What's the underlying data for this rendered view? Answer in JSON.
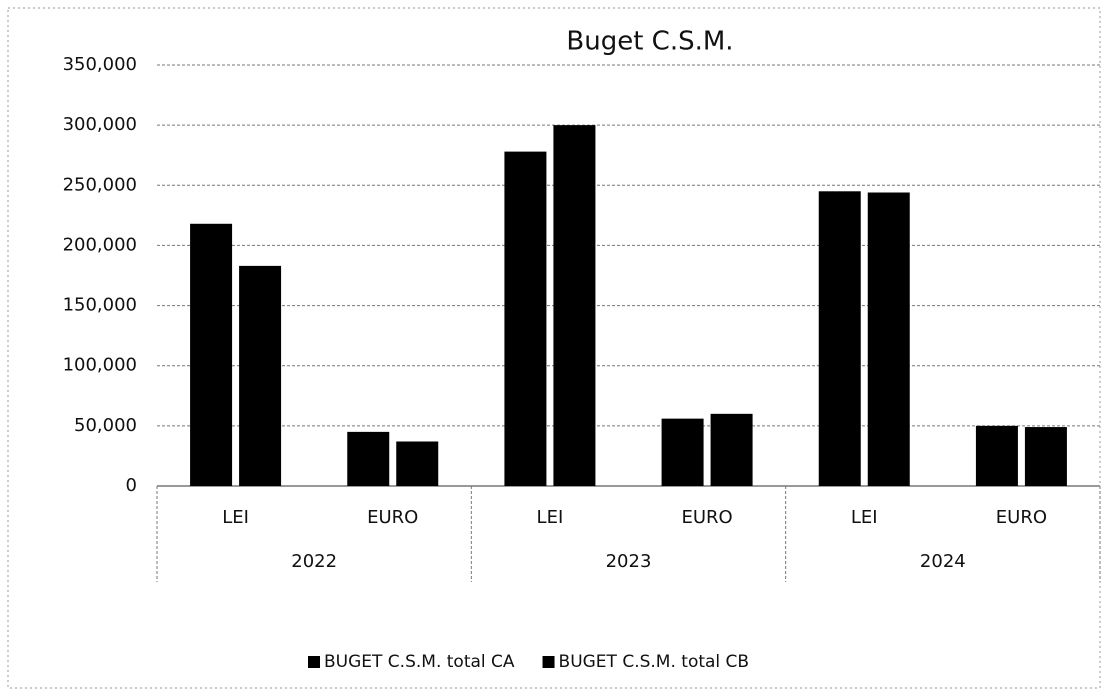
{
  "chart_data": {
    "type": "bar",
    "title": "Buget  C.S.M.",
    "categories": [
      "LEI",
      "EURO",
      "LEI",
      "EURO",
      "LEI",
      "EURO"
    ],
    "groups": [
      "2022",
      "2023",
      "2024"
    ],
    "series": [
      {
        "name": "BUGET C.S.M. total  CA",
        "color": "#000000",
        "values": [
          218000,
          45000,
          278000,
          56000,
          245000,
          50000
        ]
      },
      {
        "name": "BUGET C.S.M. total  CB",
        "color": "#000000",
        "values": [
          183000,
          37000,
          300000,
          60000,
          244000,
          49000
        ]
      }
    ],
    "ylim": [
      0,
      350000
    ],
    "yticks": [
      0,
      {
        "value": 50000,
        "label": "50,000"
      },
      {
        "value": 100000,
        "label": "100,000"
      },
      {
        "value": 150000,
        "label": "150,000"
      },
      {
        "value": 200000,
        "label": "200,000"
      },
      {
        "value": 250000,
        "label": "250,000"
      },
      {
        "value": 300000,
        "label": "300,000"
      },
      {
        "value": 350000,
        "label": "350,000"
      }
    ],
    "grid": true,
    "legend": "bottom"
  }
}
